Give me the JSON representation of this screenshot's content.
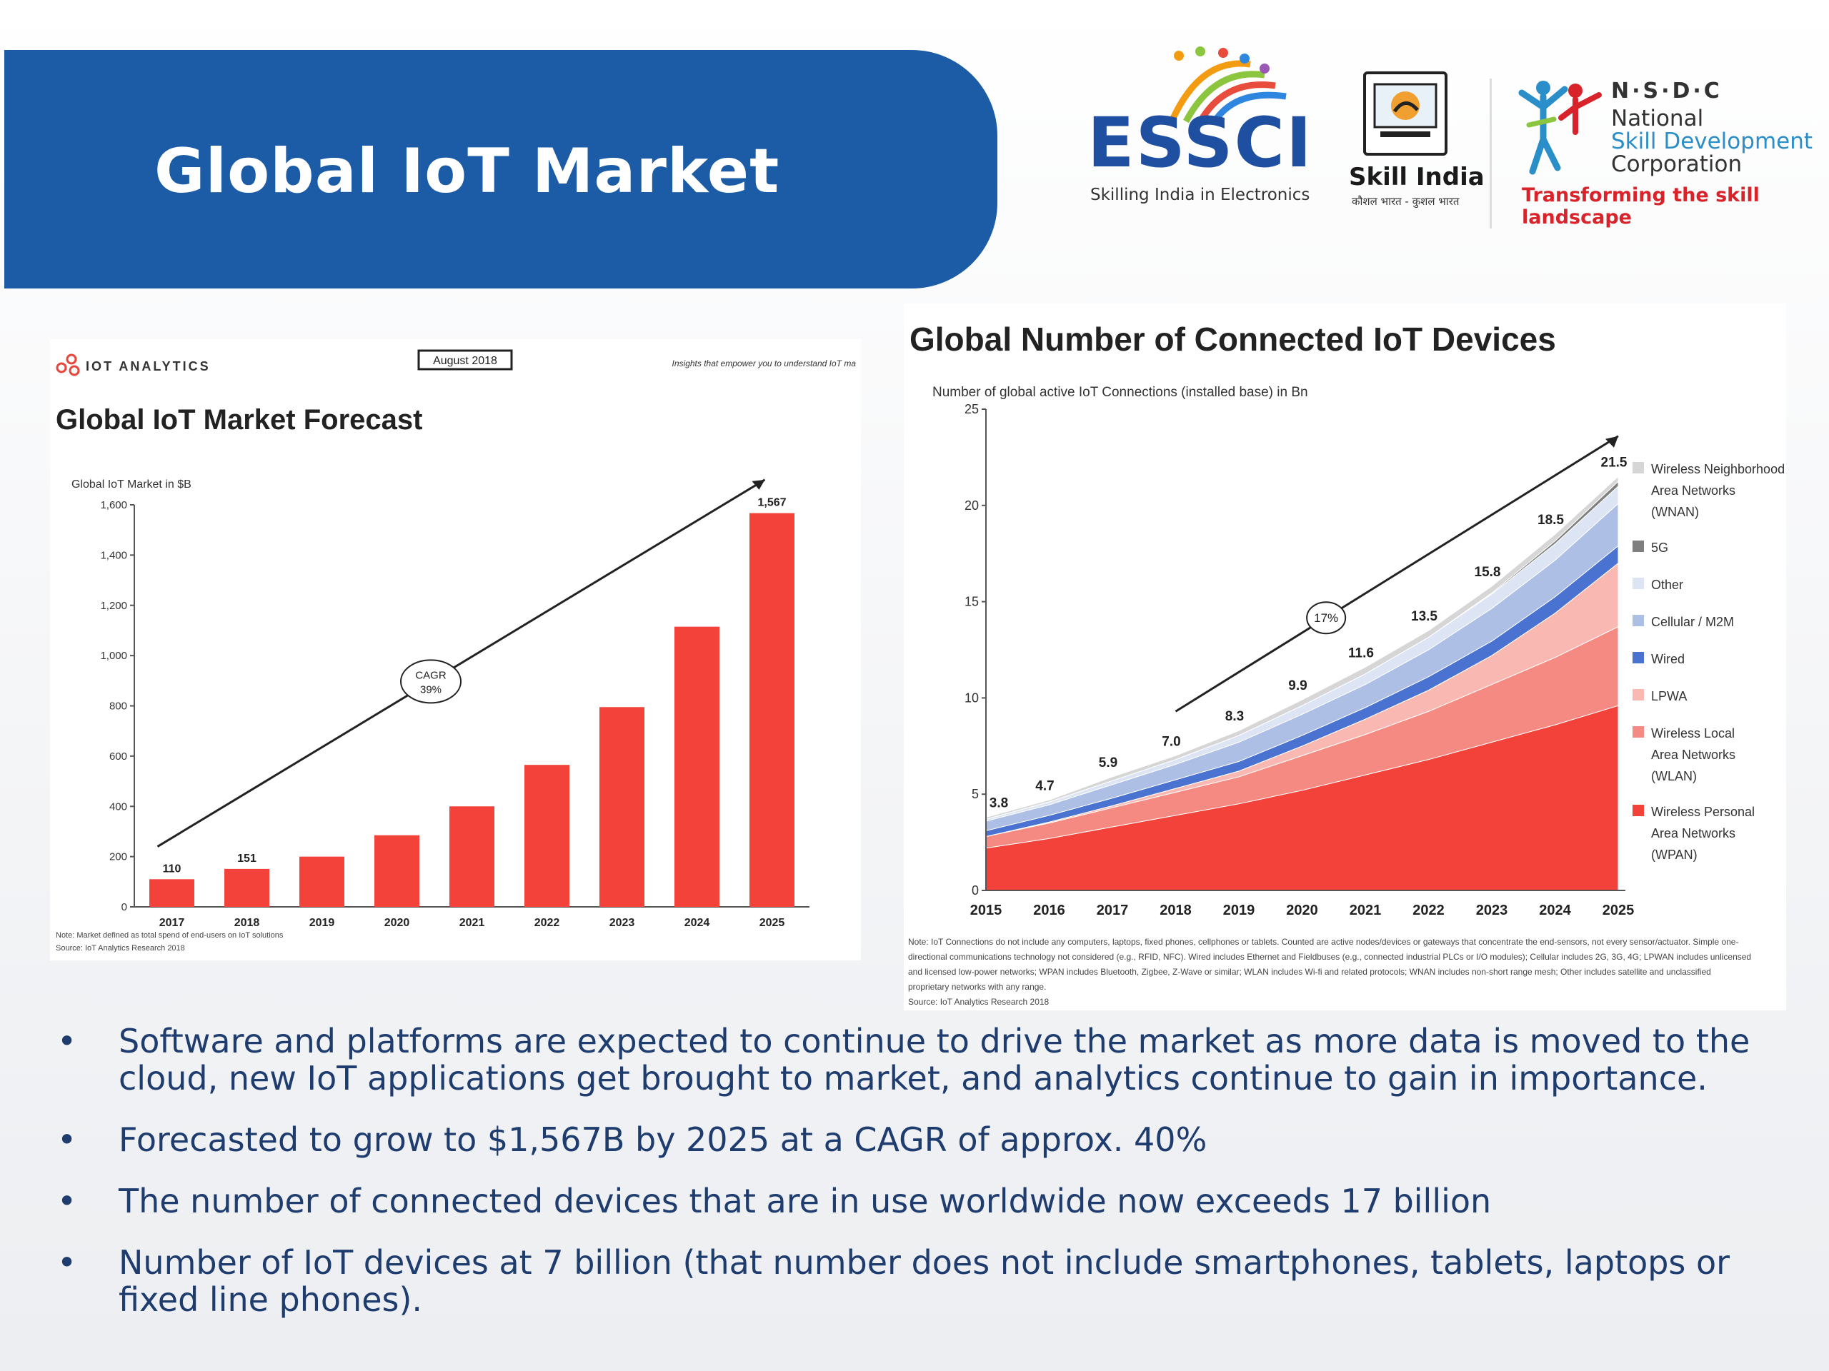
{
  "banner": {
    "title": "Global IoT Market"
  },
  "logos": {
    "essci": {
      "word": "ESSCI",
      "tagline": "Skilling India in Electronics"
    },
    "skill_india": {
      "name": "Skill India",
      "subtitle": "कौशल भारत - कुशल भारत"
    },
    "nsdc": {
      "abbr": "N·S·D·C",
      "line1": "National",
      "line2": "Skill Development",
      "line3": "Corporation",
      "tagline": "Transforming the skill landscape"
    }
  },
  "left_chart": {
    "header": {
      "brand": "IOT ANALYTICS",
      "date_badge": "August 2018",
      "slogan": "Insights that empower you to understand IoT ma"
    },
    "heading": "Global IoT Market Forecast",
    "note": "Note: Market defined as total spend of end-users on IoT solutions",
    "source": "Source: IoT Analytics Research 2018",
    "cagr_label_1": "CAGR",
    "cagr_label_2": "39%"
  },
  "right_chart": {
    "heading": "Global Number of Connected IoT Devices",
    "note_lines": [
      "Note: IoT Connections do not include any computers, laptops, fixed phones, cellphones or tablets. Counted are active nodes/devices or gateways that concentrate the end-sensors, not every sensor/actuator. Simple one-",
      "directional communications technology not considered (e.g., RFID, NFC). Wired includes Ethernet and Fieldbuses (e.g., connected industrial PLCs or I/O modules); Cellular includes 2G, 3G, 4G; LPWAN includes unlicensed",
      "and licensed low-power networks; WPAN includes Bluetooth, Zigbee, Z-Wave or similar; WLAN includes Wi-fi and related protocols; WNAN includes non-short range mesh; Other includes satellite and unclassified",
      "proprietary networks with any range.",
      "Source: IoT Analytics Research 2018"
    ],
    "cagr_label": "17%"
  },
  "chart_data": [
    {
      "type": "bar",
      "title": "Global IoT Market Forecast",
      "ylabel": "Global IoT Market in $B",
      "categories": [
        "2017",
        "2018",
        "2019",
        "2020",
        "2021",
        "2022",
        "2023",
        "2024",
        "2025"
      ],
      "values": [
        110,
        151,
        200,
        285,
        400,
        565,
        795,
        1115,
        1567
      ],
      "data_labels": [
        "110",
        "151",
        "",
        "",
        "",
        "",
        "",
        "",
        "1,567"
      ],
      "yticks": [
        "0",
        "200",
        "400",
        "600",
        "800",
        "1,000",
        "1,200",
        "1,400",
        "1,600"
      ],
      "ylim": [
        0,
        1600
      ],
      "color": "#f2423a"
    },
    {
      "type": "area",
      "title": "Global Number of Connected IoT Devices",
      "ylabel": "Number of global active IoT Connections (installed base) in Bn",
      "x": [
        "2015",
        "2016",
        "2017",
        "2018",
        "2019",
        "2020",
        "2021",
        "2022",
        "2023",
        "2024",
        "2025"
      ],
      "yticks": [
        "0",
        "5",
        "10",
        "15",
        "20",
        "25"
      ],
      "ylim": [
        0,
        25
      ],
      "totals": [
        3.8,
        4.7,
        5.9,
        7.0,
        8.3,
        9.9,
        11.6,
        13.5,
        15.8,
        18.5,
        21.5
      ],
      "total_labels": [
        "3.8",
        "4.7",
        "5.9",
        "7.0",
        "8.3",
        "9.9",
        "11.6",
        "13.5",
        "15.8",
        "18.5",
        "21.5"
      ],
      "series": [
        {
          "name": "Wireless Personal Area Networks (WPAN)",
          "legend_lines": [
            "Wireless Personal",
            "Area Networks",
            "(WPAN)"
          ],
          "color": "#f2423a",
          "values": [
            2.2,
            2.7,
            3.3,
            3.9,
            4.5,
            5.2,
            6.0,
            6.8,
            7.7,
            8.6,
            9.6
          ]
        },
        {
          "name": "Wireless Local Area Networks (WLAN)",
          "legend_lines": [
            "Wireless Local",
            "Area Networks",
            "(WLAN)"
          ],
          "color": "#f58a82",
          "values": [
            0.6,
            0.8,
            1.0,
            1.2,
            1.4,
            1.8,
            2.1,
            2.5,
            3.0,
            3.5,
            4.1
          ]
        },
        {
          "name": "LPWA",
          "legend_lines": [
            "LPWA"
          ],
          "color": "#f9b9b2",
          "values": [
            0.0,
            0.05,
            0.1,
            0.2,
            0.3,
            0.5,
            0.8,
            1.1,
            1.5,
            2.3,
            3.3
          ]
        },
        {
          "name": "Wired",
          "legend_lines": [
            "Wired"
          ],
          "color": "#4a72d0",
          "values": [
            0.3,
            0.35,
            0.4,
            0.45,
            0.5,
            0.55,
            0.6,
            0.7,
            0.75,
            0.85,
            0.9
          ]
        },
        {
          "name": "Cellular / M2M",
          "legend_lines": [
            "Cellular / M2M"
          ],
          "color": "#aebfe6",
          "values": [
            0.5,
            0.55,
            0.7,
            0.8,
            1.0,
            1.1,
            1.2,
            1.4,
            1.7,
            1.9,
            2.2
          ]
        },
        {
          "name": "Other",
          "legend_lines": [
            "Other"
          ],
          "color": "#dde5f4",
          "values": [
            0.1,
            0.15,
            0.2,
            0.25,
            0.35,
            0.45,
            0.55,
            0.65,
            0.75,
            0.85,
            0.9
          ]
        },
        {
          "name": "5G",
          "legend_lines": [
            "5G"
          ],
          "color": "#7f7f7f",
          "values": [
            0,
            0,
            0,
            0,
            0,
            0,
            0,
            0,
            0.05,
            0.15,
            0.25
          ]
        },
        {
          "name": "Wireless Neighborhood Area Networks (WNAN)",
          "legend_lines": [
            "Wireless Neighborhood",
            "Area Networks",
            "(WNAN)"
          ],
          "color": "#d6d6d6",
          "values": [
            0.1,
            0.1,
            0.2,
            0.2,
            0.25,
            0.3,
            0.35,
            0.35,
            0.35,
            0.35,
            0.25
          ]
        }
      ],
      "legend_position": "right"
    }
  ],
  "bullets": [
    {
      "marker": "•",
      "text": "Software and platforms are expected to continue to drive the market as more data is moved to the cloud, new IoT applications get brought to market, and analytics continue to gain in importance."
    },
    {
      "marker": "•",
      "text": "Forecasted to grow to $1,567B by 2025 at a CAGR of approx. 40%"
    },
    {
      "marker": "•",
      "text": "The number of connected devices that are in use worldwide now exceeds 17 billion"
    },
    {
      "marker": "•",
      "text": "Number of IoT devices at 7 billion (that number does not include smartphones, tablets, laptops or fixed line phones)."
    }
  ]
}
